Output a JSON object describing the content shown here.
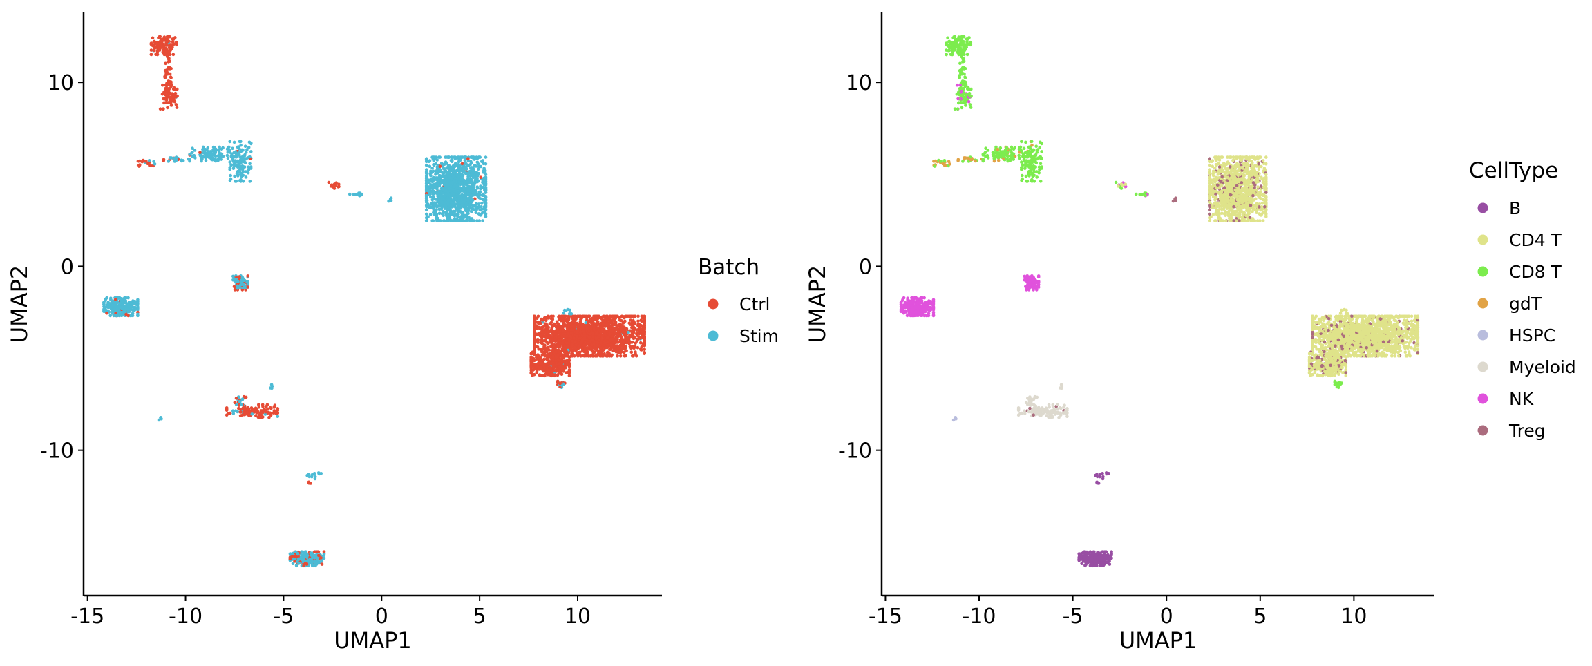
{
  "chart_data": [
    {
      "type": "scatter",
      "xlabel": "UMAP1",
      "ylabel": "UMAP2",
      "xlim": [
        -15.2,
        14.3
      ],
      "ylim": [
        -17.9,
        13.8
      ],
      "xticks": [
        -15,
        -10,
        -5,
        0,
        5,
        10
      ],
      "xtick_labels": [
        "-15",
        "-10",
        "-5",
        "0",
        "5",
        "10"
      ],
      "yticks": [
        -10,
        0,
        10
      ],
      "ytick_labels": [
        "-10",
        "0",
        "10"
      ],
      "grid": false,
      "legend": {
        "title": "Batch",
        "placement": "right"
      },
      "series": [
        {
          "name": "Ctrl",
          "color": "#E64B35"
        },
        {
          "name": "Stim",
          "color": "#4DBBD5"
        }
      ],
      "clusters": [
        {
          "cx": -11.1,
          "cy": 12.0,
          "rx": 0.6,
          "ry": 0.45,
          "n": 140,
          "mix": [
            0.97,
            0.03
          ]
        },
        {
          "cx": -10.9,
          "cy": 10.3,
          "rx": 0.15,
          "ry": 1.3,
          "n": 60,
          "mix": [
            1.0,
            0.0
          ]
        },
        {
          "cx": -10.8,
          "cy": 9.2,
          "rx": 0.45,
          "ry": 0.6,
          "n": 60,
          "mix": [
            0.95,
            0.05
          ]
        },
        {
          "cx": -12.0,
          "cy": 5.6,
          "rx": 0.4,
          "ry": 0.15,
          "n": 20,
          "mix": [
            0.8,
            0.2
          ]
        },
        {
          "cx": -10.5,
          "cy": 5.8,
          "rx": 0.6,
          "ry": 0.15,
          "n": 20,
          "mix": [
            0.2,
            0.8
          ]
        },
        {
          "cx": -8.6,
          "cy": 6.1,
          "rx": 1.1,
          "ry": 0.35,
          "n": 110,
          "mix": [
            0.05,
            0.95
          ]
        },
        {
          "cx": -7.2,
          "cy": 5.7,
          "rx": 0.5,
          "ry": 1.0,
          "n": 120,
          "mix": [
            0.05,
            0.95
          ]
        },
        {
          "cx": -2.5,
          "cy": 4.4,
          "rx": 0.3,
          "ry": 0.15,
          "n": 12,
          "mix": [
            1.0,
            0.0
          ]
        },
        {
          "cx": -1.2,
          "cy": 3.9,
          "rx": 0.4,
          "ry": 0.1,
          "n": 10,
          "mix": [
            0.0,
            1.0
          ]
        },
        {
          "cx": 0.4,
          "cy": 3.6,
          "rx": 0.15,
          "ry": 0.1,
          "n": 5,
          "mix": [
            0.0,
            1.0
          ]
        },
        {
          "cx": 3.8,
          "cy": 4.2,
          "rx": 1.4,
          "ry": 1.6,
          "n": 1200,
          "mix": [
            0.01,
            0.99
          ]
        },
        {
          "cx": -7.2,
          "cy": -0.9,
          "rx": 0.35,
          "ry": 0.35,
          "n": 90,
          "mix": [
            0.3,
            0.7
          ]
        },
        {
          "cx": -13.3,
          "cy": -2.2,
          "rx": 0.8,
          "ry": 0.45,
          "n": 260,
          "mix": [
            0.08,
            0.92
          ]
        },
        {
          "cx": 10.6,
          "cy": -3.8,
          "rx": 2.6,
          "ry": 1.0,
          "n": 1800,
          "mix": [
            0.99,
            0.01
          ]
        },
        {
          "cx": 8.6,
          "cy": -5.3,
          "rx": 0.9,
          "ry": 0.6,
          "n": 350,
          "mix": [
            0.99,
            0.01
          ]
        },
        {
          "cx": 9.2,
          "cy": -6.4,
          "rx": 0.2,
          "ry": 0.2,
          "n": 15,
          "mix": [
            0.5,
            0.5
          ]
        },
        {
          "cx": 9.5,
          "cy": -2.5,
          "rx": 0.25,
          "ry": 0.2,
          "n": 8,
          "mix": [
            0.0,
            1.0
          ]
        },
        {
          "cx": -6.6,
          "cy": -7.9,
          "rx": 1.2,
          "ry": 0.35,
          "n": 110,
          "mix": [
            0.9,
            0.1
          ]
        },
        {
          "cx": -7.2,
          "cy": -7.3,
          "rx": 0.3,
          "ry": 0.2,
          "n": 20,
          "mix": [
            0.5,
            0.5
          ]
        },
        {
          "cx": -5.6,
          "cy": -6.6,
          "rx": 0.1,
          "ry": 0.15,
          "n": 5,
          "mix": [
            0.0,
            1.0
          ]
        },
        {
          "cx": -11.3,
          "cy": -8.3,
          "rx": 0.08,
          "ry": 0.12,
          "n": 5,
          "mix": [
            0.3,
            0.7
          ]
        },
        {
          "cx": -3.6,
          "cy": -11.4,
          "rx": 0.2,
          "ry": 0.2,
          "n": 8,
          "mix": [
            0.0,
            1.0
          ]
        },
        {
          "cx": -3.1,
          "cy": -11.3,
          "rx": 0.1,
          "ry": 0.1,
          "n": 3,
          "mix": [
            0.0,
            1.0
          ]
        },
        {
          "cx": -3.7,
          "cy": -11.8,
          "rx": 0.1,
          "ry": 0.15,
          "n": 4,
          "mix": [
            1.0,
            0.0
          ]
        },
        {
          "cx": -3.8,
          "cy": -15.9,
          "rx": 0.8,
          "ry": 0.35,
          "n": 200,
          "mix": [
            0.35,
            0.65
          ]
        }
      ]
    },
    {
      "type": "scatter",
      "xlabel": "UMAP1",
      "ylabel": "UMAP2",
      "xlim": [
        -15.2,
        14.3
      ],
      "ylim": [
        -17.9,
        13.8
      ],
      "xticks": [
        -15,
        -10,
        -5,
        0,
        5,
        10
      ],
      "xtick_labels": [
        "-15",
        "-10",
        "-5",
        "0",
        "5",
        "10"
      ],
      "yticks": [
        -10,
        0,
        10
      ],
      "ytick_labels": [
        "-10",
        "0",
        "10"
      ],
      "grid": false,
      "legend": {
        "title": "CellType",
        "placement": "right"
      },
      "series": [
        {
          "name": "B",
          "color": "#984EA3"
        },
        {
          "name": "CD4 T",
          "color": "#DFE38A"
        },
        {
          "name": "CD8 T",
          "color": "#7CEC4E"
        },
        {
          "name": "gdT",
          "color": "#E1A346"
        },
        {
          "name": "HSPC",
          "color": "#B9BDDD"
        },
        {
          "name": "Myeloid",
          "color": "#DDD9CE"
        },
        {
          "name": "NK",
          "color": "#E052DC"
        },
        {
          "name": "Treg",
          "color": "#AB6C7E"
        }
      ],
      "clusters": [
        {
          "cx": -11.1,
          "cy": 12.0,
          "rx": 0.6,
          "ry": 0.45,
          "n": 140,
          "mix": [
            0,
            0,
            1,
            0,
            0,
            0,
            0,
            0
          ]
        },
        {
          "cx": -10.9,
          "cy": 10.3,
          "rx": 0.15,
          "ry": 1.3,
          "n": 60,
          "mix": [
            0,
            0,
            1,
            0,
            0,
            0,
            0,
            0
          ]
        },
        {
          "cx": -10.8,
          "cy": 9.2,
          "rx": 0.45,
          "ry": 0.6,
          "n": 60,
          "mix": [
            0,
            0,
            0.85,
            0,
            0,
            0,
            0.15,
            0
          ]
        },
        {
          "cx": -12.0,
          "cy": 5.6,
          "rx": 0.4,
          "ry": 0.15,
          "n": 20,
          "mix": [
            0,
            0,
            0.2,
            0.8,
            0,
            0,
            0,
            0
          ]
        },
        {
          "cx": -10.5,
          "cy": 5.8,
          "rx": 0.6,
          "ry": 0.15,
          "n": 20,
          "mix": [
            0,
            0,
            0.5,
            0.5,
            0,
            0,
            0,
            0
          ]
        },
        {
          "cx": -8.6,
          "cy": 6.1,
          "rx": 1.1,
          "ry": 0.35,
          "n": 110,
          "mix": [
            0,
            0,
            0.85,
            0.15,
            0,
            0,
            0,
            0
          ]
        },
        {
          "cx": -7.2,
          "cy": 5.7,
          "rx": 0.5,
          "ry": 1.0,
          "n": 120,
          "mix": [
            0,
            0,
            0.95,
            0.05,
            0,
            0,
            0,
            0
          ]
        },
        {
          "cx": -2.5,
          "cy": 4.4,
          "rx": 0.3,
          "ry": 0.15,
          "n": 12,
          "mix": [
            0,
            0.4,
            0.3,
            0,
            0,
            0,
            0.3,
            0
          ]
        },
        {
          "cx": -1.2,
          "cy": 3.9,
          "rx": 0.4,
          "ry": 0.1,
          "n": 10,
          "mix": [
            0,
            0,
            0.6,
            0,
            0,
            0,
            0.4,
            0
          ]
        },
        {
          "cx": 0.4,
          "cy": 3.6,
          "rx": 0.15,
          "ry": 0.1,
          "n": 5,
          "mix": [
            0,
            0,
            0,
            0,
            0,
            0,
            0,
            1
          ]
        },
        {
          "cx": 3.8,
          "cy": 4.2,
          "rx": 1.4,
          "ry": 1.6,
          "n": 1200,
          "mix": [
            0,
            0.9,
            0,
            0,
            0,
            0,
            0,
            0.1
          ]
        },
        {
          "cx": -7.2,
          "cy": -0.9,
          "rx": 0.35,
          "ry": 0.35,
          "n": 90,
          "mix": [
            0,
            0,
            0,
            0,
            0,
            0,
            1,
            0
          ]
        },
        {
          "cx": -13.3,
          "cy": -2.2,
          "rx": 0.8,
          "ry": 0.45,
          "n": 260,
          "mix": [
            0,
            0,
            0,
            0,
            0,
            0,
            1,
            0
          ]
        },
        {
          "cx": 10.6,
          "cy": -3.8,
          "rx": 2.6,
          "ry": 1.0,
          "n": 1800,
          "mix": [
            0,
            0.92,
            0,
            0,
            0,
            0,
            0,
            0.08
          ]
        },
        {
          "cx": 8.6,
          "cy": -5.3,
          "rx": 0.9,
          "ry": 0.6,
          "n": 350,
          "mix": [
            0,
            0.85,
            0,
            0,
            0,
            0,
            0,
            0.15
          ]
        },
        {
          "cx": 9.2,
          "cy": -6.4,
          "rx": 0.2,
          "ry": 0.2,
          "n": 15,
          "mix": [
            0,
            0,
            1,
            0,
            0,
            0,
            0,
            0
          ]
        },
        {
          "cx": 9.5,
          "cy": -2.5,
          "rx": 0.25,
          "ry": 0.2,
          "n": 8,
          "mix": [
            0,
            1,
            0,
            0,
            0,
            0,
            0,
            0
          ]
        },
        {
          "cx": -6.6,
          "cy": -7.9,
          "rx": 1.2,
          "ry": 0.35,
          "n": 110,
          "mix": [
            0,
            0,
            0,
            0,
            0,
            0.95,
            0,
            0.05
          ]
        },
        {
          "cx": -7.2,
          "cy": -7.3,
          "rx": 0.3,
          "ry": 0.2,
          "n": 20,
          "mix": [
            0,
            0,
            0,
            0,
            0,
            1,
            0,
            0
          ]
        },
        {
          "cx": -5.6,
          "cy": -6.6,
          "rx": 0.1,
          "ry": 0.15,
          "n": 5,
          "mix": [
            0,
            0,
            0,
            0,
            0,
            1,
            0,
            0
          ]
        },
        {
          "cx": -11.3,
          "cy": -8.3,
          "rx": 0.08,
          "ry": 0.12,
          "n": 5,
          "mix": [
            0,
            0,
            0,
            0,
            1,
            0,
            0,
            0
          ]
        },
        {
          "cx": -3.6,
          "cy": -11.4,
          "rx": 0.2,
          "ry": 0.2,
          "n": 8,
          "mix": [
            1,
            0,
            0,
            0,
            0,
            0,
            0,
            0
          ]
        },
        {
          "cx": -3.1,
          "cy": -11.3,
          "rx": 0.1,
          "ry": 0.1,
          "n": 3,
          "mix": [
            1,
            0,
            0,
            0,
            0,
            0,
            0,
            0
          ]
        },
        {
          "cx": -3.7,
          "cy": -11.8,
          "rx": 0.1,
          "ry": 0.15,
          "n": 4,
          "mix": [
            1,
            0,
            0,
            0,
            0,
            0,
            0,
            0
          ]
        },
        {
          "cx": -3.8,
          "cy": -15.9,
          "rx": 0.8,
          "ry": 0.35,
          "n": 200,
          "mix": [
            1,
            0,
            0,
            0,
            0,
            0,
            0,
            0
          ]
        }
      ]
    }
  ]
}
